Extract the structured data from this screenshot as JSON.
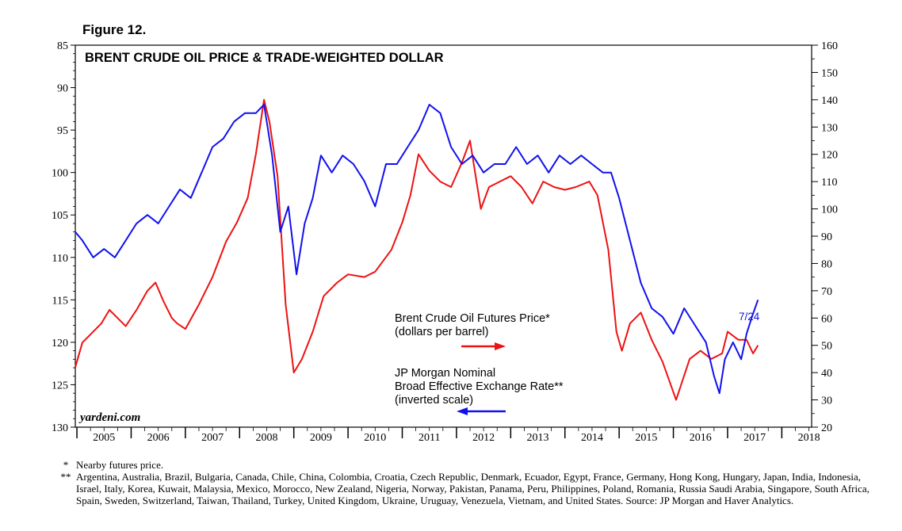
{
  "figure_label": "Figure 12.",
  "colors": {
    "oil": "#ee1111",
    "dollar": "#1111ee",
    "axis": "#000000"
  },
  "chart_data": {
    "type": "line",
    "title": "BRENT CRUDE OIL PRICE & TRADE-WEIGHTED DOLLAR",
    "x_tick_labels": [
      "2005",
      "2006",
      "2007",
      "2008",
      "2009",
      "2010",
      "2011",
      "2012",
      "2013",
      "2014",
      "2015",
      "2016",
      "2017",
      "2018"
    ],
    "x_range": [
      2004.97,
      2018.55
    ],
    "left_axis": {
      "label": "JP Morgan Nominal Broad Effective Exchange Rate (inverted scale)",
      "range": [
        85,
        130
      ],
      "inverted": true,
      "ticks": [
        85,
        90,
        95,
        100,
        105,
        110,
        115,
        120,
        125,
        130
      ]
    },
    "right_axis": {
      "label": "dollars per barrel",
      "range": [
        20,
        160
      ],
      "ticks": [
        20,
        30,
        40,
        50,
        60,
        70,
        80,
        90,
        100,
        110,
        120,
        130,
        140,
        150,
        160
      ]
    },
    "series": [
      {
        "name": "Brent Crude Oil Futures Price*",
        "axis": "right",
        "unit_label": "(dollars per barrel)",
        "x": [
          2004.97,
          2005.1,
          2005.25,
          2005.45,
          2005.6,
          2005.75,
          2005.9,
          2006.1,
          2006.3,
          2006.45,
          2006.6,
          2006.75,
          2006.85,
          2007.0,
          2007.25,
          2007.5,
          2007.75,
          2007.95,
          2008.15,
          2008.3,
          2008.45,
          2008.55,
          2008.7,
          2008.85,
          2009.0,
          2009.15,
          2009.35,
          2009.55,
          2009.8,
          2010.0,
          2010.3,
          2010.5,
          2010.8,
          2011.0,
          2011.15,
          2011.3,
          2011.5,
          2011.7,
          2011.9,
          2012.1,
          2012.25,
          2012.45,
          2012.6,
          2012.8,
          2013.0,
          2013.2,
          2013.4,
          2013.6,
          2013.8,
          2014.0,
          2014.2,
          2014.45,
          2014.6,
          2014.8,
          2014.95,
          2015.05,
          2015.2,
          2015.4,
          2015.6,
          2015.8,
          2016.05,
          2016.3,
          2016.5,
          2016.7,
          2016.9,
          2017.0,
          2017.2,
          2017.35,
          2017.47,
          2017.56
        ],
        "y": [
          42,
          51,
          54,
          58,
          63,
          60,
          57,
          63,
          70,
          73,
          66,
          60,
          58,
          56,
          65,
          75,
          88,
          95,
          104,
          120,
          140,
          132,
          112,
          65,
          40,
          45,
          55,
          68,
          73,
          76,
          75,
          77,
          85,
          95,
          105,
          120,
          114,
          110,
          108,
          117,
          125,
          100,
          108,
          110,
          112,
          108,
          102,
          110,
          108,
          107,
          108,
          110,
          105,
          85,
          55,
          48,
          58,
          62,
          52,
          44,
          30,
          45,
          48,
          45,
          47,
          55,
          52,
          52,
          47,
          50
        ]
      },
      {
        "name": "JP Morgan Nominal Broad Effective Exchange Rate**",
        "axis": "left",
        "unit_label": "(inverted scale)",
        "x": [
          2004.97,
          2005.1,
          2005.3,
          2005.5,
          2005.7,
          2005.9,
          2006.1,
          2006.3,
          2006.5,
          2006.7,
          2006.9,
          2007.1,
          2007.3,
          2007.5,
          2007.7,
          2007.9,
          2008.1,
          2008.3,
          2008.45,
          2008.6,
          2008.75,
          2008.9,
          2009.05,
          2009.2,
          2009.35,
          2009.5,
          2009.7,
          2009.9,
          2010.1,
          2010.3,
          2010.5,
          2010.7,
          2010.9,
          2011.1,
          2011.3,
          2011.5,
          2011.7,
          2011.9,
          2012.1,
          2012.3,
          2012.5,
          2012.7,
          2012.9,
          2013.1,
          2013.3,
          2013.5,
          2013.7,
          2013.9,
          2014.1,
          2014.3,
          2014.5,
          2014.7,
          2014.85,
          2015.0,
          2015.2,
          2015.4,
          2015.6,
          2015.8,
          2016.0,
          2016.2,
          2016.4,
          2016.6,
          2016.75,
          2016.85,
          2016.95,
          2017.1,
          2017.25,
          2017.35,
          2017.45,
          2017.56
        ],
        "y": [
          107,
          108,
          110,
          109,
          110,
          108,
          106,
          105,
          106,
          104,
          102,
          103,
          100,
          97,
          96,
          94,
          93,
          93,
          92,
          98,
          107,
          104,
          112,
          106,
          103,
          98,
          100,
          98,
          99,
          101,
          104,
          99,
          99,
          97,
          95,
          92,
          93,
          97,
          99,
          98,
          100,
          99,
          99,
          97,
          99,
          98,
          100,
          98,
          99,
          98,
          99,
          100,
          100,
          103,
          108,
          113,
          116,
          117,
          119,
          116,
          118,
          120,
          124,
          126,
          122,
          120,
          122,
          119,
          117,
          115
        ]
      }
    ],
    "annotations": {
      "oil_label_1": "Brent Crude Oil Futures Price*",
      "oil_label_2": "(dollars per barrel)",
      "usd_label_1": "JP Morgan Nominal",
      "usd_label_2": "Broad Effective Exchange Rate**",
      "usd_label_3": "(inverted scale)",
      "date_label": "7/24",
      "source_brand": "yardeni.com"
    }
  },
  "footnotes": [
    {
      "mark": "*",
      "text": "Nearby futures price."
    },
    {
      "mark": "**",
      "text": "Argentina, Australia, Brazil, Bulgaria, Canada, Chile, China, Colombia, Croatia, Czech Republic, Denmark, Ecuador, Egypt, France, Germany, Hong Kong, Hungary, Japan, India, Indonesia, Israel, Italy, Korea, Kuwait, Malaysia, Mexico, Morocco, New Zealand, Nigeria, Norway, Pakistan, Panama, Peru, Philippines, Poland, Romania, Russia Saudi Arabia, Singapore, South Africa, Spain, Sweden, Switzerland, Taiwan, Thailand, Turkey, United Kingdom, Ukraine, Uruguay, Venezuela, Vietnam, and United States. Source: JP Morgan and Haver Analytics."
    }
  ]
}
